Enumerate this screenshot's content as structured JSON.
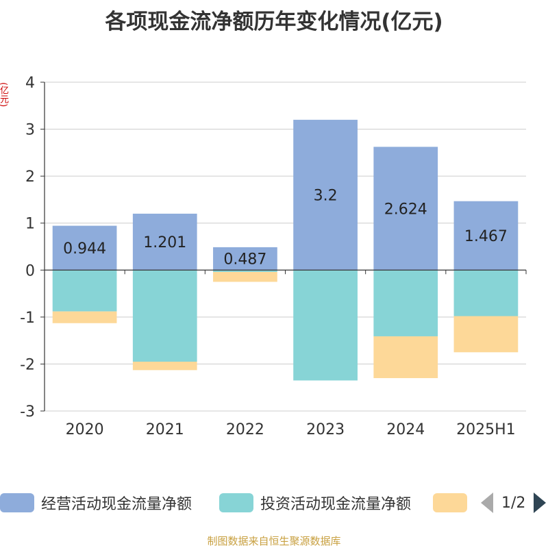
{
  "chart_data": {
    "type": "bar",
    "stacked": true,
    "title": "各项现金流净额历年变化情况(亿元)",
    "ylabel": "(亿元)",
    "categories": [
      "2020",
      "2021",
      "2022",
      "2023",
      "2024",
      "2025H1"
    ],
    "ylim": [
      -3,
      4
    ],
    "yticks": [
      -3,
      -2,
      -1,
      0,
      1,
      2,
      3,
      4
    ],
    "grid": true,
    "legend_position": "bottom",
    "series": [
      {
        "name": "经营活动现金流量净额",
        "color": "#8eacdb",
        "values": [
          0.944,
          1.201,
          0.487,
          3.2,
          2.624,
          1.467
        ],
        "show_labels": true
      },
      {
        "name": "投资活动现金流量净额",
        "color": "#87d4d6",
        "values": [
          -0.88,
          -1.95,
          -0.04,
          -2.35,
          -1.41,
          -0.98
        ],
        "show_labels": false
      },
      {
        "name": "",
        "color": "#fdd898",
        "values": [
          -0.25,
          -0.18,
          -0.21,
          0,
          -0.89,
          -0.77
        ],
        "show_labels": false
      }
    ]
  },
  "legend": {
    "pager_text": "1/2"
  },
  "source_note": "制图数据来自恒生聚源数据库"
}
